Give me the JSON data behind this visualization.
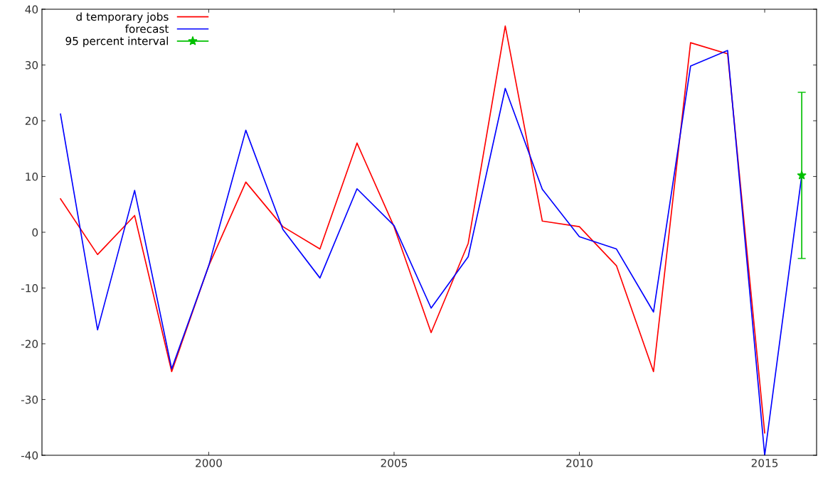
{
  "chart_data": {
    "type": "line",
    "x": [
      1996,
      1997,
      1998,
      1999,
      2000,
      2001,
      2002,
      2003,
      2004,
      2005,
      2006,
      2007,
      2008,
      2009,
      2010,
      2011,
      2012,
      2013,
      2014,
      2015
    ],
    "series": [
      {
        "name": "d temporary jobs",
        "color": "#ff0000",
        "values": [
          6,
          -4,
          3,
          -25,
          -6,
          9,
          1,
          -3,
          16,
          1,
          -18,
          -2,
          37,
          2,
          1,
          -6,
          -25,
          34,
          32,
          -36
        ]
      },
      {
        "name": "forecast",
        "color": "#0000ff",
        "x": [
          1996,
          1997,
          1998,
          1999,
          2000,
          2001,
          2002,
          2003,
          2004,
          2005,
          2006,
          2007,
          2008,
          2009,
          2010,
          2011,
          2012,
          2013,
          2014,
          2015,
          2016
        ],
        "values": [
          21.2,
          -17.5,
          7.5,
          -24.5,
          -6,
          18.3,
          0.5,
          -8.2,
          7.8,
          1.2,
          -13.6,
          -4.4,
          25.8,
          7.7,
          -0.8,
          -3,
          -14.3,
          29.8,
          32.6,
          -40,
          10.2
        ]
      },
      {
        "name": "95 percent interval",
        "color": "#00c000",
        "type": "scatter",
        "marker": "star",
        "x": [
          2016
        ],
        "values": [
          10.2
        ],
        "errors": [
          [
            -4.7,
            25.1
          ]
        ]
      }
    ],
    "xlim": [
      1995.5,
      2016.4
    ],
    "xticks": [
      2000,
      2005,
      2010,
      2015
    ],
    "ylim": [
      -40,
      40
    ],
    "yticks": [
      -40,
      -30,
      -20,
      -10,
      0,
      10,
      20,
      30,
      40
    ],
    "grid": false,
    "legend": "top left",
    "line_style": "solid",
    "marker": "none"
  }
}
